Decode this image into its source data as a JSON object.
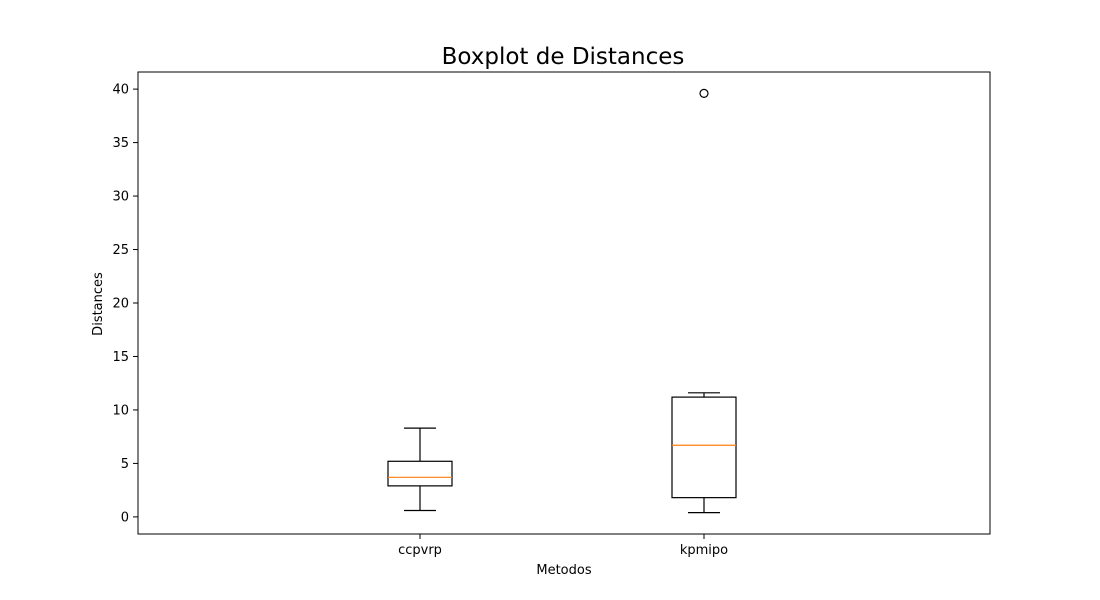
{
  "chart_data": {
    "type": "boxplot",
    "title": "Boxplot de Distances",
    "xlabel": "Metodos",
    "ylabel": "Distances",
    "categories": [
      "ccpvrp",
      "kpmipo"
    ],
    "ylim": [
      -1.6,
      41.6
    ],
    "yticks": [
      0,
      5,
      10,
      15,
      20,
      25,
      30,
      35,
      40
    ],
    "grid": false,
    "legend": false,
    "boxes": [
      {
        "name": "ccpvrp",
        "whisker_low": 0.6,
        "q1": 2.9,
        "median": 3.7,
        "q3": 5.2,
        "whisker_high": 8.3,
        "outliers": []
      },
      {
        "name": "kpmipo",
        "whisker_low": 0.4,
        "q1": 1.8,
        "median": 6.7,
        "q3": 11.2,
        "whisker_high": 11.6,
        "outliers": [
          39.6
        ]
      }
    ],
    "colors": {
      "box": "#000000",
      "median": "#ff7f0e",
      "axes": "#000000"
    }
  }
}
